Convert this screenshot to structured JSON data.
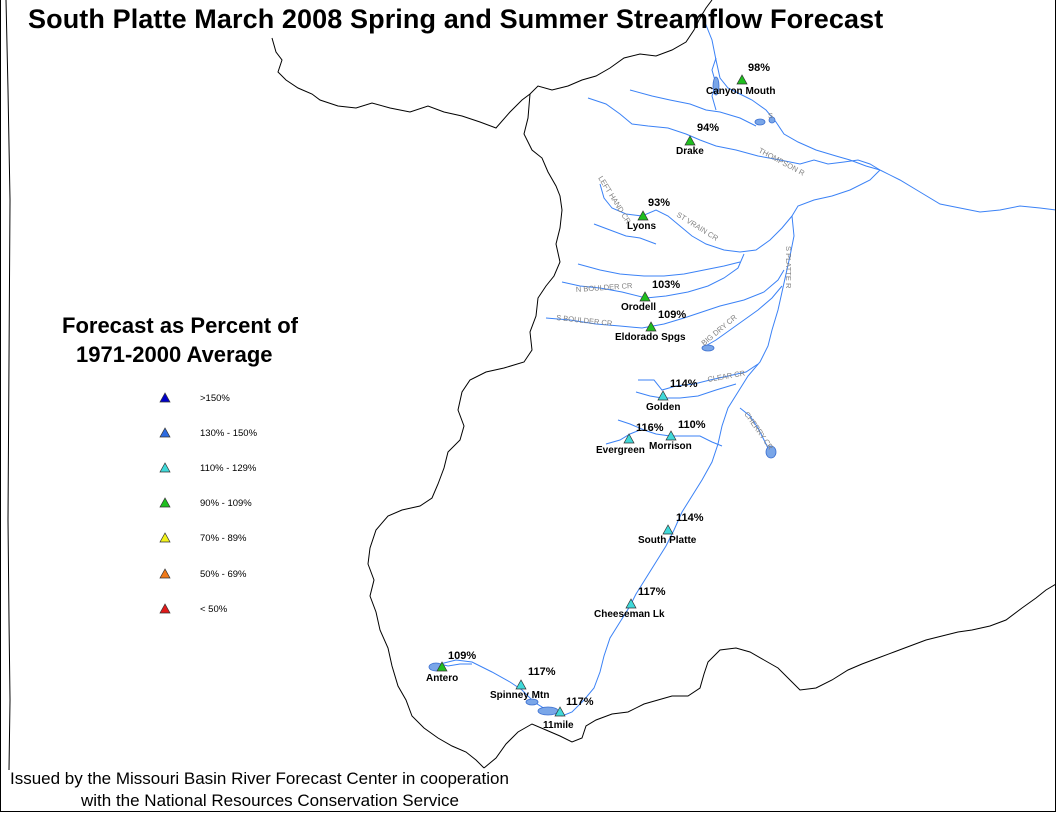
{
  "title": "South Platte March 2008 Spring and Summer Streamflow Forecast",
  "legend": {
    "title_line1": "Forecast as Percent of",
    "title_line2": "1971-2000 Average",
    "items": [
      {
        "label": ">150%",
        "color": "#0000c8"
      },
      {
        "label": "130% - 150%",
        "color": "#2d6be0"
      },
      {
        "label": "110% - 129%",
        "color": "#3fd9d9"
      },
      {
        "label": "90% - 109%",
        "color": "#1fbf1f"
      },
      {
        "label": "70% - 89%",
        "color": "#f2f21a"
      },
      {
        "label": "50% - 69%",
        "color": "#f07a1a"
      },
      {
        "label": "< 50%",
        "color": "#e01a1a"
      }
    ]
  },
  "colors": {
    "river": "#3b82f6",
    "reservoir": "#7aa6e8",
    "boundary": "#000000",
    "river_label": "#808080"
  },
  "stations": [
    {
      "name": "Canyon Mouth",
      "pct": "98%",
      "category": "90% - 109%"
    },
    {
      "name": "Drake",
      "pct": "94%",
      "category": "90% - 109%"
    },
    {
      "name": "Lyons",
      "pct": "93%",
      "category": "90% - 109%"
    },
    {
      "name": "Orodell",
      "pct": "103%",
      "category": "90% - 109%"
    },
    {
      "name": "Eldorado Spgs",
      "pct": "109%",
      "category": "90% - 109%"
    },
    {
      "name": "Golden",
      "pct": "114%",
      "category": "110% - 129%"
    },
    {
      "name": "Evergreen",
      "pct": "116%",
      "category": "110% - 129%"
    },
    {
      "name": "Morrison",
      "pct": "110%",
      "category": "110% - 129%"
    },
    {
      "name": "South Platte",
      "pct": "114%",
      "category": "110% - 129%"
    },
    {
      "name": "Cheeseman Lk",
      "pct": "117%",
      "category": "110% - 129%"
    },
    {
      "name": "Antero",
      "pct": "109%",
      "category": "90% - 109%"
    },
    {
      "name": "Spinney Mtn",
      "pct": "117%",
      "category": "110% - 129%"
    },
    {
      "name": "11mile",
      "pct": "117%",
      "category": "110% - 129%"
    }
  ],
  "river_labels": [
    "THOMPSON R",
    "S",
    "ST VRAIN CR",
    "N BOULDER CR",
    "S BOULDER CR",
    "BIG DRY CR",
    "CLEAR CR",
    "CHERRY CR",
    "S PLATTE R",
    "LEFT HAND CR"
  ],
  "footer": {
    "line1": "Issued by the Missouri Basin River Forecast Center in cooperation",
    "line2": "with the National Resources Conservation Service"
  }
}
